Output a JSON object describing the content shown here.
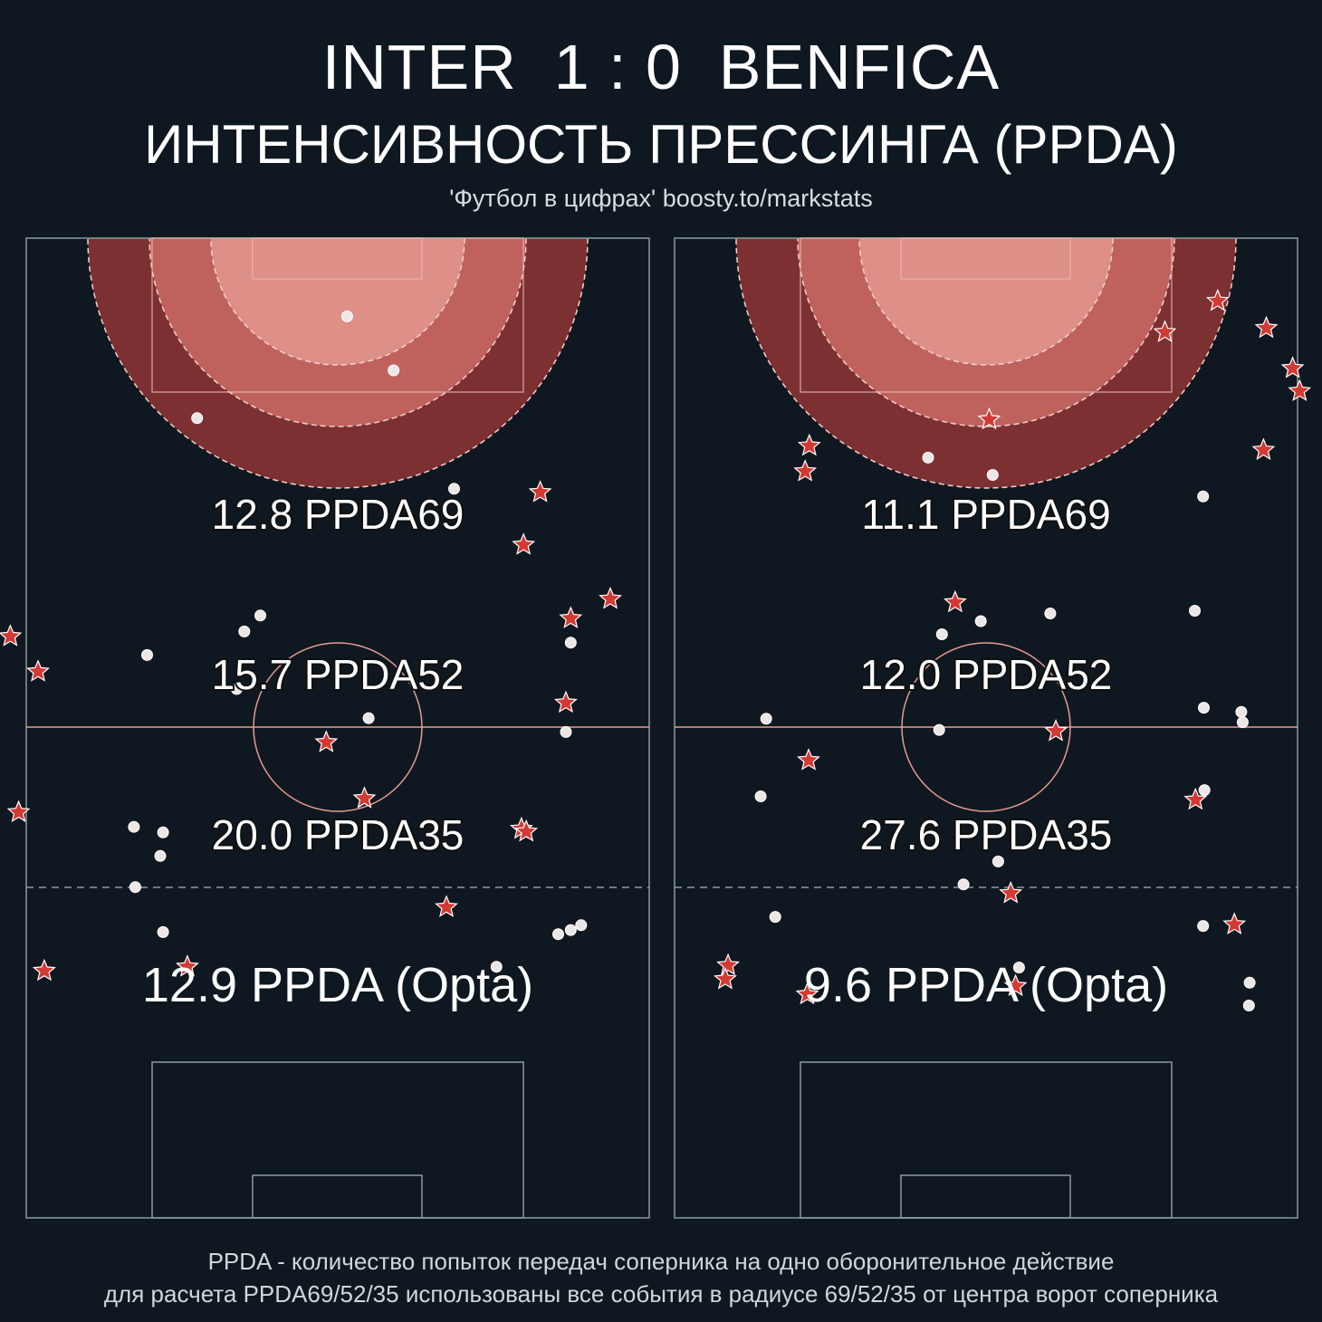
{
  "header": {
    "title": "INTER  1 : 0  BENFICA",
    "subtitle": "ИНТЕНСИВНОСТЬ ПРЕССИНГА (PPDA)",
    "source": "'Футбол в цифрах' boosty.to/markstats"
  },
  "footnote": {
    "line1": "PPDA - количество попыток передач соперника на одно оборонительное действие",
    "line2": "для расчета PPDA69/52/35 использованы все события в радиусе 69/52/35 от центра ворот соперника"
  },
  "colors": {
    "background": "#0f1820",
    "zone35": "#de8f87",
    "zone52": "#bf625e",
    "zone69": "#7c3031",
    "pitch_lines": "#8a9aa0",
    "star": "#d23a34"
  },
  "icons": {
    "event_dot": "circle",
    "event_star": "star"
  },
  "chart_data": [
    {
      "type": "scatter",
      "team": "INTER",
      "zones": [
        {
          "label": "20.0 PPDA35"
        },
        {
          "label": "15.7 PPDA52"
        },
        {
          "label": "12.8 PPDA69"
        }
      ],
      "opta_label": "12.9 PPDA (Opta)",
      "dots": [
        [
          37.2,
          59.3
        ],
        [
          43.9,
          51.5
        ],
        [
          15.6,
          44.6
        ],
        [
          52.6,
          34.4
        ],
        [
          24.7,
          16.1
        ],
        [
          22.4,
          13.8
        ],
        [
          69.4,
          12.2
        ],
        [
          8.4,
          10.4
        ],
        [
          21.3,
          5.5
        ],
        [
          40.3,
          1.3
        ],
        [
          68.7,
          -0.7
        ],
        [
          6.5,
          -14.4
        ],
        [
          10.7,
          -15.2
        ],
        [
          10.3,
          -18.6
        ],
        [
          6.7,
          -23.1
        ],
        [
          70.9,
          -28.6
        ],
        [
          69.4,
          -29.3
        ],
        [
          67.6,
          -29.9
        ],
        [
          10.7,
          -29.6
        ],
        [
          58.7,
          -34.6
        ]
      ],
      "stars": [
        [
          65.0,
          33.9
        ],
        [
          62.6,
          26.3
        ],
        [
          75.1,
          18.5
        ],
        [
          69.4,
          15.7
        ],
        [
          -11.3,
          13.1
        ],
        [
          -7.3,
          8.0
        ],
        [
          68.7,
          3.5
        ],
        [
          34.2,
          -2.2
        ],
        [
          39.7,
          -10.3
        ],
        [
          -10.1,
          -12.3
        ],
        [
          62.3,
          -14.7
        ],
        [
          63.0,
          -15.1
        ],
        [
          51.5,
          -26.0
        ],
        [
          -6.4,
          -35.2
        ],
        [
          14.2,
          -34.6
        ]
      ]
    },
    {
      "type": "scatter",
      "team": "BENFICA",
      "zones": [
        {
          "label": "27.6 PPDA35"
        },
        {
          "label": "12.0 PPDA52"
        },
        {
          "label": "11.1 PPDA69"
        }
      ],
      "opta_label": "9.6 PPDA (Opta)",
      "dots": [
        [
          27.5,
          38.9
        ],
        [
          36.8,
          36.4
        ],
        [
          67.1,
          33.3
        ],
        [
          45.1,
          16.4
        ],
        [
          65.9,
          16.8
        ],
        [
          35.1,
          15.3
        ],
        [
          29.5,
          13.4
        ],
        [
          67.2,
          2.8
        ],
        [
          72.6,
          2.2
        ],
        [
          72.8,
          0.7
        ],
        [
          4.2,
          1.2
        ],
        [
          29.1,
          -0.4
        ],
        [
          3.4,
          -10.0
        ],
        [
          67.3,
          -9.1
        ],
        [
          37.6,
          -19.4
        ],
        [
          67.1,
          -28.7
        ],
        [
          32.6,
          -22.7
        ],
        [
          5.5,
          -27.4
        ],
        [
          40.6,
          -34.7
        ],
        [
          73.8,
          -36.9
        ],
        [
          73.7,
          -40.2
        ]
      ],
      "stars": [
        [
          61.6,
          57.0
        ],
        [
          69.2,
          61.5
        ],
        [
          76.2,
          57.6
        ],
        [
          80.0,
          51.8
        ],
        [
          81.0,
          48.5
        ],
        [
          36.3,
          44.4
        ],
        [
          10.4,
          40.6
        ],
        [
          9.8,
          36.9
        ],
        [
          75.8,
          40.0
        ],
        [
          31.4,
          18.0
        ],
        [
          45.9,
          -0.6
        ],
        [
          10.3,
          -4.8
        ],
        [
          66.0,
          -10.5
        ],
        [
          39.4,
          -24.0
        ],
        [
          71.6,
          -28.5
        ],
        [
          -1.3,
          -34.4
        ],
        [
          -1.7,
          -36.4
        ],
        [
          40.1,
          -37.4
        ],
        [
          10.1,
          -38.6
        ]
      ]
    }
  ]
}
